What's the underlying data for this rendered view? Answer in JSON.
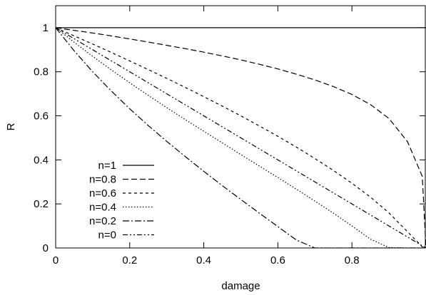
{
  "chart_data": {
    "type": "line",
    "xlabel": "damage",
    "ylabel": "R",
    "xlim": [
      0,
      1
    ],
    "ylim": [
      0,
      1.1
    ],
    "xticks": [
      "0",
      "0.2",
      "0.4",
      "0.6",
      "0.8"
    ],
    "yticks": [
      "0",
      "0.2",
      "0.4",
      "0.6",
      "0.8",
      "1"
    ],
    "grid": false,
    "legend_position": "bottom-left",
    "x": [
      0,
      0.05,
      0.1,
      0.15,
      0.2,
      0.25,
      0.3,
      0.35,
      0.4,
      0.45,
      0.5,
      0.55,
      0.6,
      0.65,
      0.7,
      0.75,
      0.8,
      0.85,
      0.9,
      0.95,
      0.99,
      1
    ],
    "series": [
      {
        "name": "n=1",
        "dash": "solid",
        "values": [
          1,
          1,
          1,
          1,
          1,
          1,
          1,
          1,
          1,
          1,
          1,
          1,
          1,
          1,
          1,
          1,
          1,
          1,
          1,
          1,
          1,
          1
        ]
      },
      {
        "name": "n=0.8",
        "dash": "long-dash",
        "values": [
          1,
          0.988,
          0.976,
          0.963,
          0.949,
          0.935,
          0.92,
          0.905,
          0.889,
          0.872,
          0.854,
          0.834,
          0.813,
          0.789,
          0.763,
          0.733,
          0.697,
          0.651,
          0.588,
          0.483,
          0.325,
          0
        ]
      },
      {
        "name": "n=0.6",
        "dash": "short-dash",
        "values": [
          1,
          0.963,
          0.926,
          0.888,
          0.849,
          0.81,
          0.77,
          0.729,
          0.687,
          0.644,
          0.6,
          0.554,
          0.507,
          0.458,
          0.406,
          0.352,
          0.294,
          0.231,
          0.159,
          0.074,
          0.005,
          0
        ]
      },
      {
        "name": "n=0.4",
        "dash": "dotted",
        "values": [
          1,
          0.934,
          0.87,
          0.809,
          0.75,
          0.693,
          0.637,
          0.583,
          0.53,
          0.477,
          0.424,
          0.372,
          0.32,
          0.267,
          0.213,
          0.158,
          0.1,
          0.04,
          0.002,
          0.0,
          0.0,
          0
        ]
      },
      {
        "name": "n=0.2",
        "dash": "dash-dot",
        "values": [
          1,
          0.895,
          0.8,
          0.713,
          0.632,
          0.556,
          0.484,
          0.415,
          0.348,
          0.283,
          0.22,
          0.158,
          0.097,
          0.036,
          0.0,
          0.0,
          0.0,
          0.0,
          0.0,
          0.0,
          0.0,
          0
        ]
      },
      {
        "name": "n=0",
        "dash": "dash-dot-dot",
        "values": [
          1,
          0.95,
          0.9,
          0.85,
          0.8,
          0.75,
          0.7,
          0.65,
          0.6,
          0.55,
          0.5,
          0.45,
          0.4,
          0.35,
          0.3,
          0.25,
          0.2,
          0.15,
          0.1,
          0.05,
          0.01,
          0
        ]
      }
    ]
  }
}
